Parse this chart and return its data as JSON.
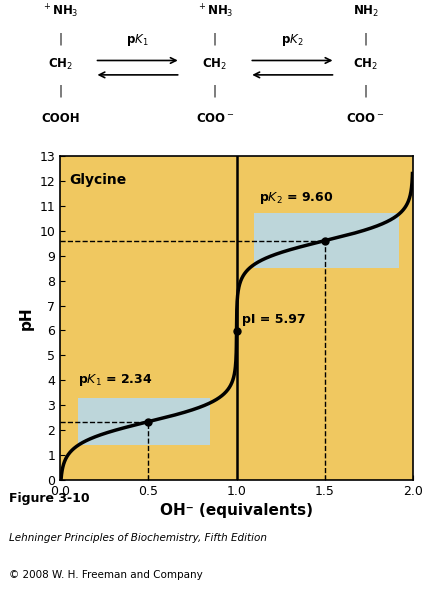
{
  "title": "Glycine",
  "xlabel": "OH⁻ (equivalents)",
  "ylabel": "pH",
  "xlim": [
    0,
    2
  ],
  "ylim": [
    0,
    13
  ],
  "xticks": [
    0,
    0.5,
    1,
    1.5,
    2
  ],
  "yticks": [
    0,
    1,
    2,
    3,
    4,
    5,
    6,
    7,
    8,
    9,
    10,
    11,
    12,
    13
  ],
  "pK1": 2.34,
  "pK2": 9.6,
  "pI": 5.97,
  "bg_color": "#F0C860",
  "curve_color": "#000000",
  "blue_box_color": "#B8D8E8",
  "fig_caption_title": "Figure 3-10",
  "fig_caption_line1": "Lehninger Principles of Biochemistry, Fifth Edition",
  "fig_caption_line2": "© 2008 W. H. Freeman and Company",
  "chem_fs": 8.5,
  "label_fs": 9
}
